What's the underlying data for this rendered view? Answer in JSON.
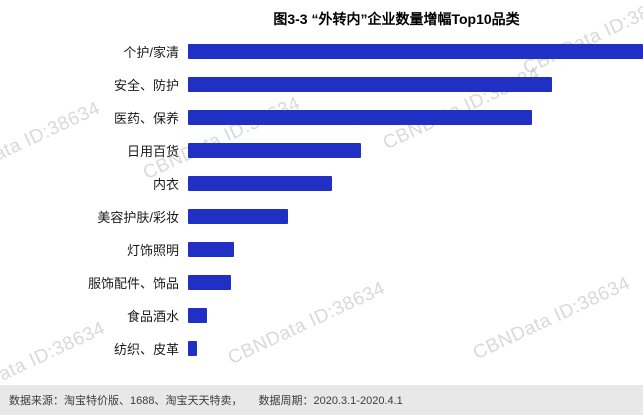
{
  "watermark": {
    "text": "CBNData ID:38634"
  },
  "footer": {
    "source": "数据来源：淘宝特价版、1688、淘宝天天特卖，",
    "period": "数据周期：2020.3.1-2020.4.1"
  },
  "chart_data": {
    "type": "bar",
    "orientation": "horizontal",
    "title": "图3-3 “外转内”企业数量增幅Top10品类",
    "categories": [
      "个护/家清",
      "安全、防护",
      "医药、保养",
      "日用百货",
      "内衣",
      "美容护肤/彩妆",
      "灯饰照明",
      "服饰配件、饰品",
      "食品酒水",
      "纺织、皮革"
    ],
    "values": [
      100,
      80,
      75.5,
      38,
      31.7,
      22,
      10.2,
      9.5,
      4.1,
      2.0
    ],
    "xlim": [
      0,
      100
    ],
    "bar_color": "#2030c4",
    "grid": false,
    "legend": false,
    "value_axis_visible": false
  }
}
